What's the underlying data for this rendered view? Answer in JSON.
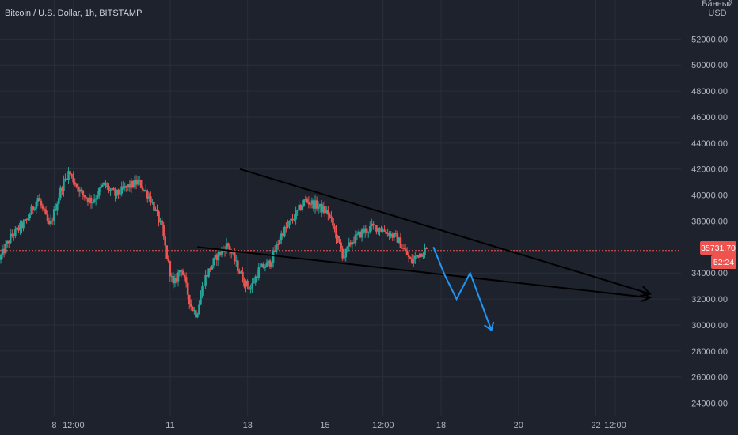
{
  "header": {
    "title": "Bitcoin / U.S. Dollar, 1h, BITSTAMP",
    "currency_unit": "USD",
    "unit_mode": "Бӑнный"
  },
  "price_badge": {
    "value": "35731.70",
    "countdown": "52:24"
  },
  "colors": {
    "background": "#1e222d",
    "grid": "#2a2e39",
    "up": "#26a69a",
    "down": "#ef5350",
    "price_line": "#ef5350",
    "trendline": "#000000",
    "projection": "#2196f3"
  },
  "chart_data": {
    "type": "candlestick",
    "grid": true,
    "price_range": [
      23000,
      55000
    ],
    "time_range": [
      6.6,
      24.2
    ],
    "current_price": 35731.7,
    "y_ticks": [
      "24000.00",
      "26000.00",
      "28000.00",
      "30000.00",
      "32000.00",
      "34000.00",
      "38000.00",
      "40000.00",
      "42000.00",
      "44000.00",
      "46000.00",
      "48000.00",
      "50000.00",
      "52000.00"
    ],
    "x_ticks": [
      {
        "label": "8",
        "t": 8
      },
      {
        "label": "12:00",
        "t": 8.5
      },
      {
        "label": "11",
        "t": 11
      },
      {
        "label": "13",
        "t": 13
      },
      {
        "label": "15",
        "t": 15
      },
      {
        "label": "12:00",
        "t": 16.5
      },
      {
        "label": "18",
        "t": 18
      },
      {
        "label": "20",
        "t": 20
      },
      {
        "label": "22",
        "t": 22
      },
      {
        "label": "12:00",
        "t": 22.5
      }
    ],
    "price_path": [
      [
        6.6,
        35000
      ],
      [
        6.9,
        36800
      ],
      [
        7.3,
        38000
      ],
      [
        7.6,
        39800
      ],
      [
        7.9,
        37500
      ],
      [
        8.2,
        40500
      ],
      [
        8.4,
        41800
      ],
      [
        8.7,
        40200
      ],
      [
        9.0,
        39500
      ],
      [
        9.3,
        40800
      ],
      [
        9.6,
        40000
      ],
      [
        9.9,
        40600
      ],
      [
        10.2,
        41000
      ],
      [
        10.5,
        39800
      ],
      [
        10.8,
        37500
      ],
      [
        10.95,
        35000
      ],
      [
        11.1,
        33000
      ],
      [
        11.3,
        34500
      ],
      [
        11.55,
        31500
      ],
      [
        11.7,
        30800
      ],
      [
        11.9,
        33500
      ],
      [
        12.2,
        35200
      ],
      [
        12.5,
        36200
      ],
      [
        12.75,
        34500
      ],
      [
        12.95,
        33200
      ],
      [
        13.1,
        32800
      ],
      [
        13.3,
        34200
      ],
      [
        13.6,
        34800
      ],
      [
        13.9,
        37000
      ],
      [
        14.2,
        38200
      ],
      [
        14.5,
        39600
      ],
      [
        14.8,
        39200
      ],
      [
        15.1,
        38600
      ],
      [
        15.3,
        37000
      ],
      [
        15.5,
        35200
      ],
      [
        15.7,
        36400
      ],
      [
        16.0,
        37200
      ],
      [
        16.3,
        37600
      ],
      [
        16.6,
        37200
      ],
      [
        16.9,
        36600
      ],
      [
        17.1,
        35600
      ],
      [
        17.25,
        34800
      ],
      [
        17.4,
        35400
      ],
      [
        17.6,
        35731.7
      ]
    ],
    "trendlines": [
      {
        "name": "upper",
        "from": [
          12.8,
          42000
        ],
        "to": [
          23.4,
          32400
        ]
      },
      {
        "name": "lower",
        "from": [
          11.7,
          36000
        ],
        "to": [
          23.4,
          32100
        ]
      }
    ],
    "projection": [
      [
        17.8,
        36000
      ],
      [
        18.1,
        33800
      ],
      [
        18.4,
        32000
      ],
      [
        18.75,
        34000
      ],
      [
        19.3,
        29600
      ]
    ]
  }
}
